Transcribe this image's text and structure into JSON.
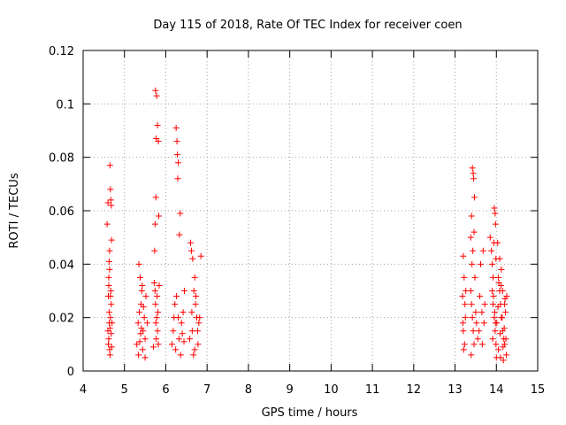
{
  "chart_data": {
    "type": "scatter",
    "title": "Day 115 of 2018, Rate Of TEC Index for receiver coen",
    "xlabel": "GPS time / hours",
    "ylabel": "ROTI / TECUs",
    "xlim": [
      4,
      15
    ],
    "ylim": [
      0,
      0.12
    ],
    "xticks": [
      4,
      5,
      6,
      7,
      8,
      9,
      10,
      11,
      12,
      13,
      14,
      15
    ],
    "yticks": [
      0,
      0.02,
      0.04,
      0.06,
      0.08,
      0.1,
      0.12
    ],
    "xtick_labels": [
      "4",
      "5",
      "6",
      "7",
      "8",
      "9",
      "10",
      "11",
      "12",
      "13",
      "14",
      "15"
    ],
    "ytick_labels": [
      "0",
      "0.02",
      "0.04",
      "0.06",
      "0.08",
      "0.1",
      "0.12"
    ],
    "grid": true,
    "marker": "+",
    "marker_color": "#ff0000",
    "series": [
      {
        "name": "ROTI",
        "points": [
          [
            4.58,
            0.055
          ],
          [
            4.6,
            0.063
          ],
          [
            4.63,
            0.041
          ],
          [
            4.65,
            0.077
          ],
          [
            4.66,
            0.068
          ],
          [
            4.67,
            0.064
          ],
          [
            4.68,
            0.062
          ],
          [
            4.62,
            0.035
          ],
          [
            4.64,
            0.045
          ],
          [
            4.69,
            0.049
          ],
          [
            4.6,
            0.015
          ],
          [
            4.62,
            0.012
          ],
          [
            4.64,
            0.008
          ],
          [
            4.66,
            0.02
          ],
          [
            4.68,
            0.025
          ],
          [
            4.63,
            0.018
          ],
          [
            4.61,
            0.01
          ],
          [
            4.67,
            0.03
          ],
          [
            4.65,
            0.006
          ],
          [
            4.7,
            0.018
          ],
          [
            4.64,
            0.038
          ],
          [
            4.62,
            0.032
          ],
          [
            4.66,
            0.028
          ],
          [
            4.68,
            0.014
          ],
          [
            4.63,
            0.022
          ],
          [
            4.65,
            0.016
          ],
          [
            4.69,
            0.009
          ],
          [
            4.61,
            0.028
          ],
          [
            5.35,
            0.04
          ],
          [
            5.38,
            0.035
          ],
          [
            5.42,
            0.03
          ],
          [
            5.4,
            0.025
          ],
          [
            5.36,
            0.022
          ],
          [
            5.33,
            0.018
          ],
          [
            5.45,
            0.015
          ],
          [
            5.5,
            0.012
          ],
          [
            5.3,
            0.01
          ],
          [
            5.44,
            0.008
          ],
          [
            5.48,
            0.02
          ],
          [
            5.52,
            0.028
          ],
          [
            5.55,
            0.018
          ],
          [
            5.34,
            0.006
          ],
          [
            5.46,
            0.024
          ],
          [
            5.39,
            0.014
          ],
          [
            5.43,
            0.032
          ],
          [
            5.37,
            0.011
          ],
          [
            5.41,
            0.016
          ],
          [
            5.5,
            0.005
          ],
          [
            5.75,
            0.105
          ],
          [
            5.78,
            0.103
          ],
          [
            5.8,
            0.092
          ],
          [
            5.77,
            0.087
          ],
          [
            5.82,
            0.086
          ],
          [
            5.76,
            0.065
          ],
          [
            5.83,
            0.058
          ],
          [
            5.74,
            0.055
          ],
          [
            5.73,
            0.045
          ],
          [
            5.72,
            0.033
          ],
          [
            5.75,
            0.025
          ],
          [
            5.78,
            0.02
          ],
          [
            5.8,
            0.015
          ],
          [
            5.77,
            0.012
          ],
          [
            5.82,
            0.01
          ],
          [
            5.74,
            0.03
          ],
          [
            5.79,
            0.028
          ],
          [
            5.81,
            0.022
          ],
          [
            5.76,
            0.018
          ],
          [
            5.84,
            0.032
          ],
          [
            5.7,
            0.009
          ],
          [
            6.15,
            0.01
          ],
          [
            6.2,
            0.02
          ],
          [
            6.25,
            0.091
          ],
          [
            6.27,
            0.086
          ],
          [
            6.28,
            0.081
          ],
          [
            6.3,
            0.078
          ],
          [
            6.29,
            0.072
          ],
          [
            6.35,
            0.059
          ],
          [
            6.33,
            0.051
          ],
          [
            6.18,
            0.015
          ],
          [
            6.22,
            0.025
          ],
          [
            6.26,
            0.028
          ],
          [
            6.32,
            0.012
          ],
          [
            6.38,
            0.018
          ],
          [
            6.42,
            0.022
          ],
          [
            6.45,
            0.03
          ],
          [
            6.4,
            0.014
          ],
          [
            6.24,
            0.008
          ],
          [
            6.36,
            0.006
          ],
          [
            6.3,
            0.02
          ],
          [
            6.44,
            0.011
          ],
          [
            6.6,
            0.048
          ],
          [
            6.62,
            0.045
          ],
          [
            6.65,
            0.042
          ],
          [
            6.7,
            0.035
          ],
          [
            6.68,
            0.03
          ],
          [
            6.72,
            0.025
          ],
          [
            6.75,
            0.02
          ],
          [
            6.64,
            0.015
          ],
          [
            6.58,
            0.012
          ],
          [
            6.78,
            0.01
          ],
          [
            6.8,
            0.018
          ],
          [
            6.63,
            0.022
          ],
          [
            6.85,
            0.043
          ],
          [
            6.67,
            0.006
          ],
          [
            6.73,
            0.028
          ],
          [
            6.77,
            0.015
          ],
          [
            6.7,
            0.008
          ],
          [
            6.82,
            0.02
          ],
          [
            13.2,
            0.043
          ],
          [
            13.22,
            0.035
          ],
          [
            13.18,
            0.028
          ],
          [
            13.25,
            0.02
          ],
          [
            13.2,
            0.015
          ],
          [
            13.23,
            0.01
          ],
          [
            13.19,
            0.018
          ],
          [
            13.24,
            0.025
          ],
          [
            13.21,
            0.008
          ],
          [
            13.26,
            0.03
          ],
          [
            13.42,
            0.076
          ],
          [
            13.44,
            0.074
          ],
          [
            13.45,
            0.072
          ],
          [
            13.4,
            0.058
          ],
          [
            13.47,
            0.065
          ],
          [
            13.38,
            0.05
          ],
          [
            13.43,
            0.045
          ],
          [
            13.41,
            0.04
          ],
          [
            13.46,
            0.052
          ],
          [
            13.38,
            0.03
          ],
          [
            13.4,
            0.025
          ],
          [
            13.42,
            0.02
          ],
          [
            13.44,
            0.015
          ],
          [
            13.46,
            0.01
          ],
          [
            13.39,
            0.006
          ],
          [
            13.5,
            0.022
          ],
          [
            13.52,
            0.018
          ],
          [
            13.55,
            0.012
          ],
          [
            13.48,
            0.035
          ],
          [
            13.6,
            0.028
          ],
          [
            13.65,
            0.022
          ],
          [
            13.7,
            0.018
          ],
          [
            13.62,
            0.04
          ],
          [
            13.68,
            0.045
          ],
          [
            13.58,
            0.015
          ],
          [
            13.72,
            0.025
          ],
          [
            13.66,
            0.01
          ],
          [
            13.85,
            0.05
          ],
          [
            13.88,
            0.045
          ],
          [
            13.9,
            0.04
          ],
          [
            13.92,
            0.035
          ],
          [
            13.95,
            0.061
          ],
          [
            13.97,
            0.059
          ],
          [
            13.98,
            0.055
          ],
          [
            13.94,
            0.048
          ],
          [
            13.99,
            0.042
          ],
          [
            13.9,
            0.03
          ],
          [
            13.92,
            0.025
          ],
          [
            13.95,
            0.02
          ],
          [
            13.97,
            0.015
          ],
          [
            13.99,
            0.01
          ],
          [
            14.0,
            0.005
          ],
          [
            13.93,
            0.028
          ],
          [
            13.96,
            0.022
          ],
          [
            13.98,
            0.018
          ],
          [
            13.91,
            0.012
          ],
          [
            14.05,
            0.035
          ],
          [
            14.08,
            0.03
          ],
          [
            14.1,
            0.025
          ],
          [
            14.12,
            0.02
          ],
          [
            14.15,
            0.015
          ],
          [
            14.18,
            0.012
          ],
          [
            14.2,
            0.01
          ],
          [
            14.05,
            0.008
          ],
          [
            14.1,
            0.005
          ],
          [
            14.15,
            0.03
          ],
          [
            14.2,
            0.025
          ],
          [
            14.22,
            0.022
          ],
          [
            14.25,
            0.028
          ],
          [
            14.08,
            0.042
          ],
          [
            14.12,
            0.038
          ],
          [
            14.03,
            0.048
          ],
          [
            14.06,
            0.033
          ],
          [
            14.14,
            0.02
          ],
          [
            14.19,
            0.016
          ],
          [
            14.24,
            0.006
          ],
          [
            14.01,
            0.018
          ],
          [
            14.04,
            0.024
          ],
          [
            14.09,
            0.014
          ],
          [
            14.16,
            0.009
          ],
          [
            14.21,
            0.027
          ],
          [
            14.11,
            0.032
          ],
          [
            14.17,
            0.004
          ],
          [
            14.23,
            0.012
          ]
        ]
      }
    ]
  }
}
